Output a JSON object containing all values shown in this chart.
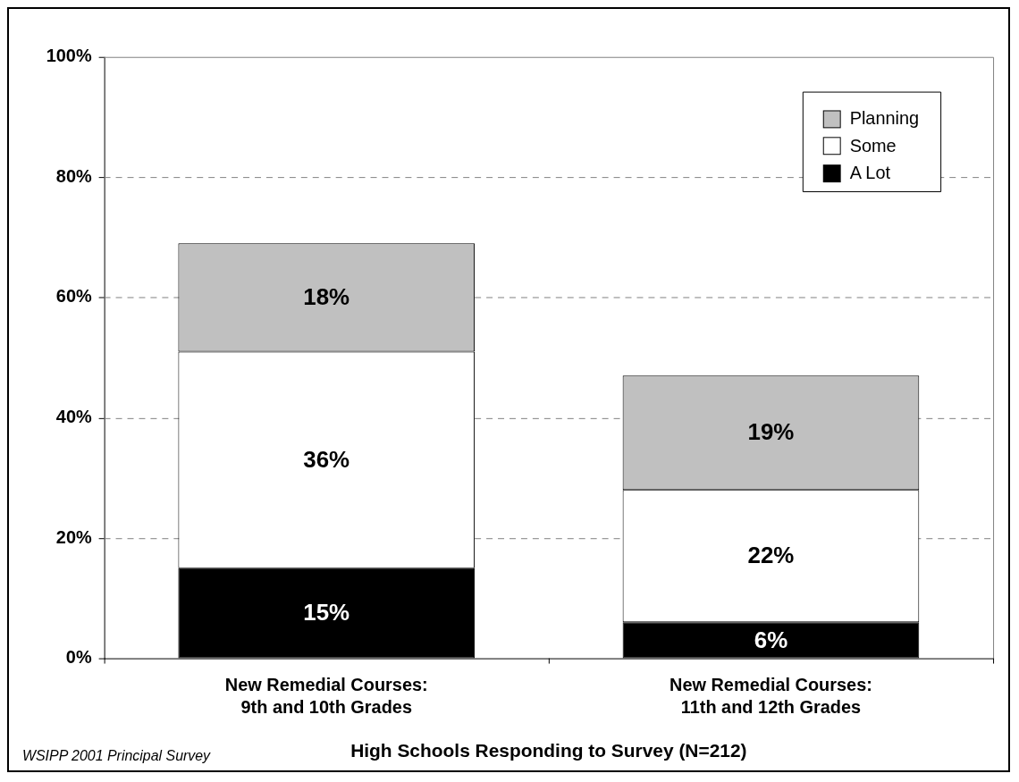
{
  "chart_data": {
    "type": "bar",
    "stacked": true,
    "categories": [
      "New Remedial Courses:\n9th and 10th Grades",
      "New Remedial Courses:\n11th and 12th Grades"
    ],
    "series": [
      {
        "name": "A Lot",
        "color": "#000000",
        "values": [
          15,
          6
        ],
        "value_labels": [
          "15%",
          "6%"
        ]
      },
      {
        "name": "Some",
        "color": "#ffffff",
        "values": [
          36,
          22
        ],
        "value_labels": [
          "36%",
          "22%"
        ]
      },
      {
        "name": "Planning",
        "color": "#c0c0c0",
        "values": [
          18,
          19
        ],
        "value_labels": [
          "18%",
          "19%"
        ]
      }
    ],
    "ylim": [
      0,
      100
    ],
    "yticks": [
      {
        "value": 0,
        "label": "0%"
      },
      {
        "value": 20,
        "label": "20%"
      },
      {
        "value": 40,
        "label": "40%"
      },
      {
        "value": 60,
        "label": "60%"
      },
      {
        "value": 80,
        "label": "80%"
      },
      {
        "value": 100,
        "label": "100%"
      }
    ],
    "xlabel": "High Schools Responding to Survey (N=212)",
    "annotations": [
      "WSIPP 2001 Principal Survey"
    ],
    "grid": "y",
    "legend": "top right"
  }
}
